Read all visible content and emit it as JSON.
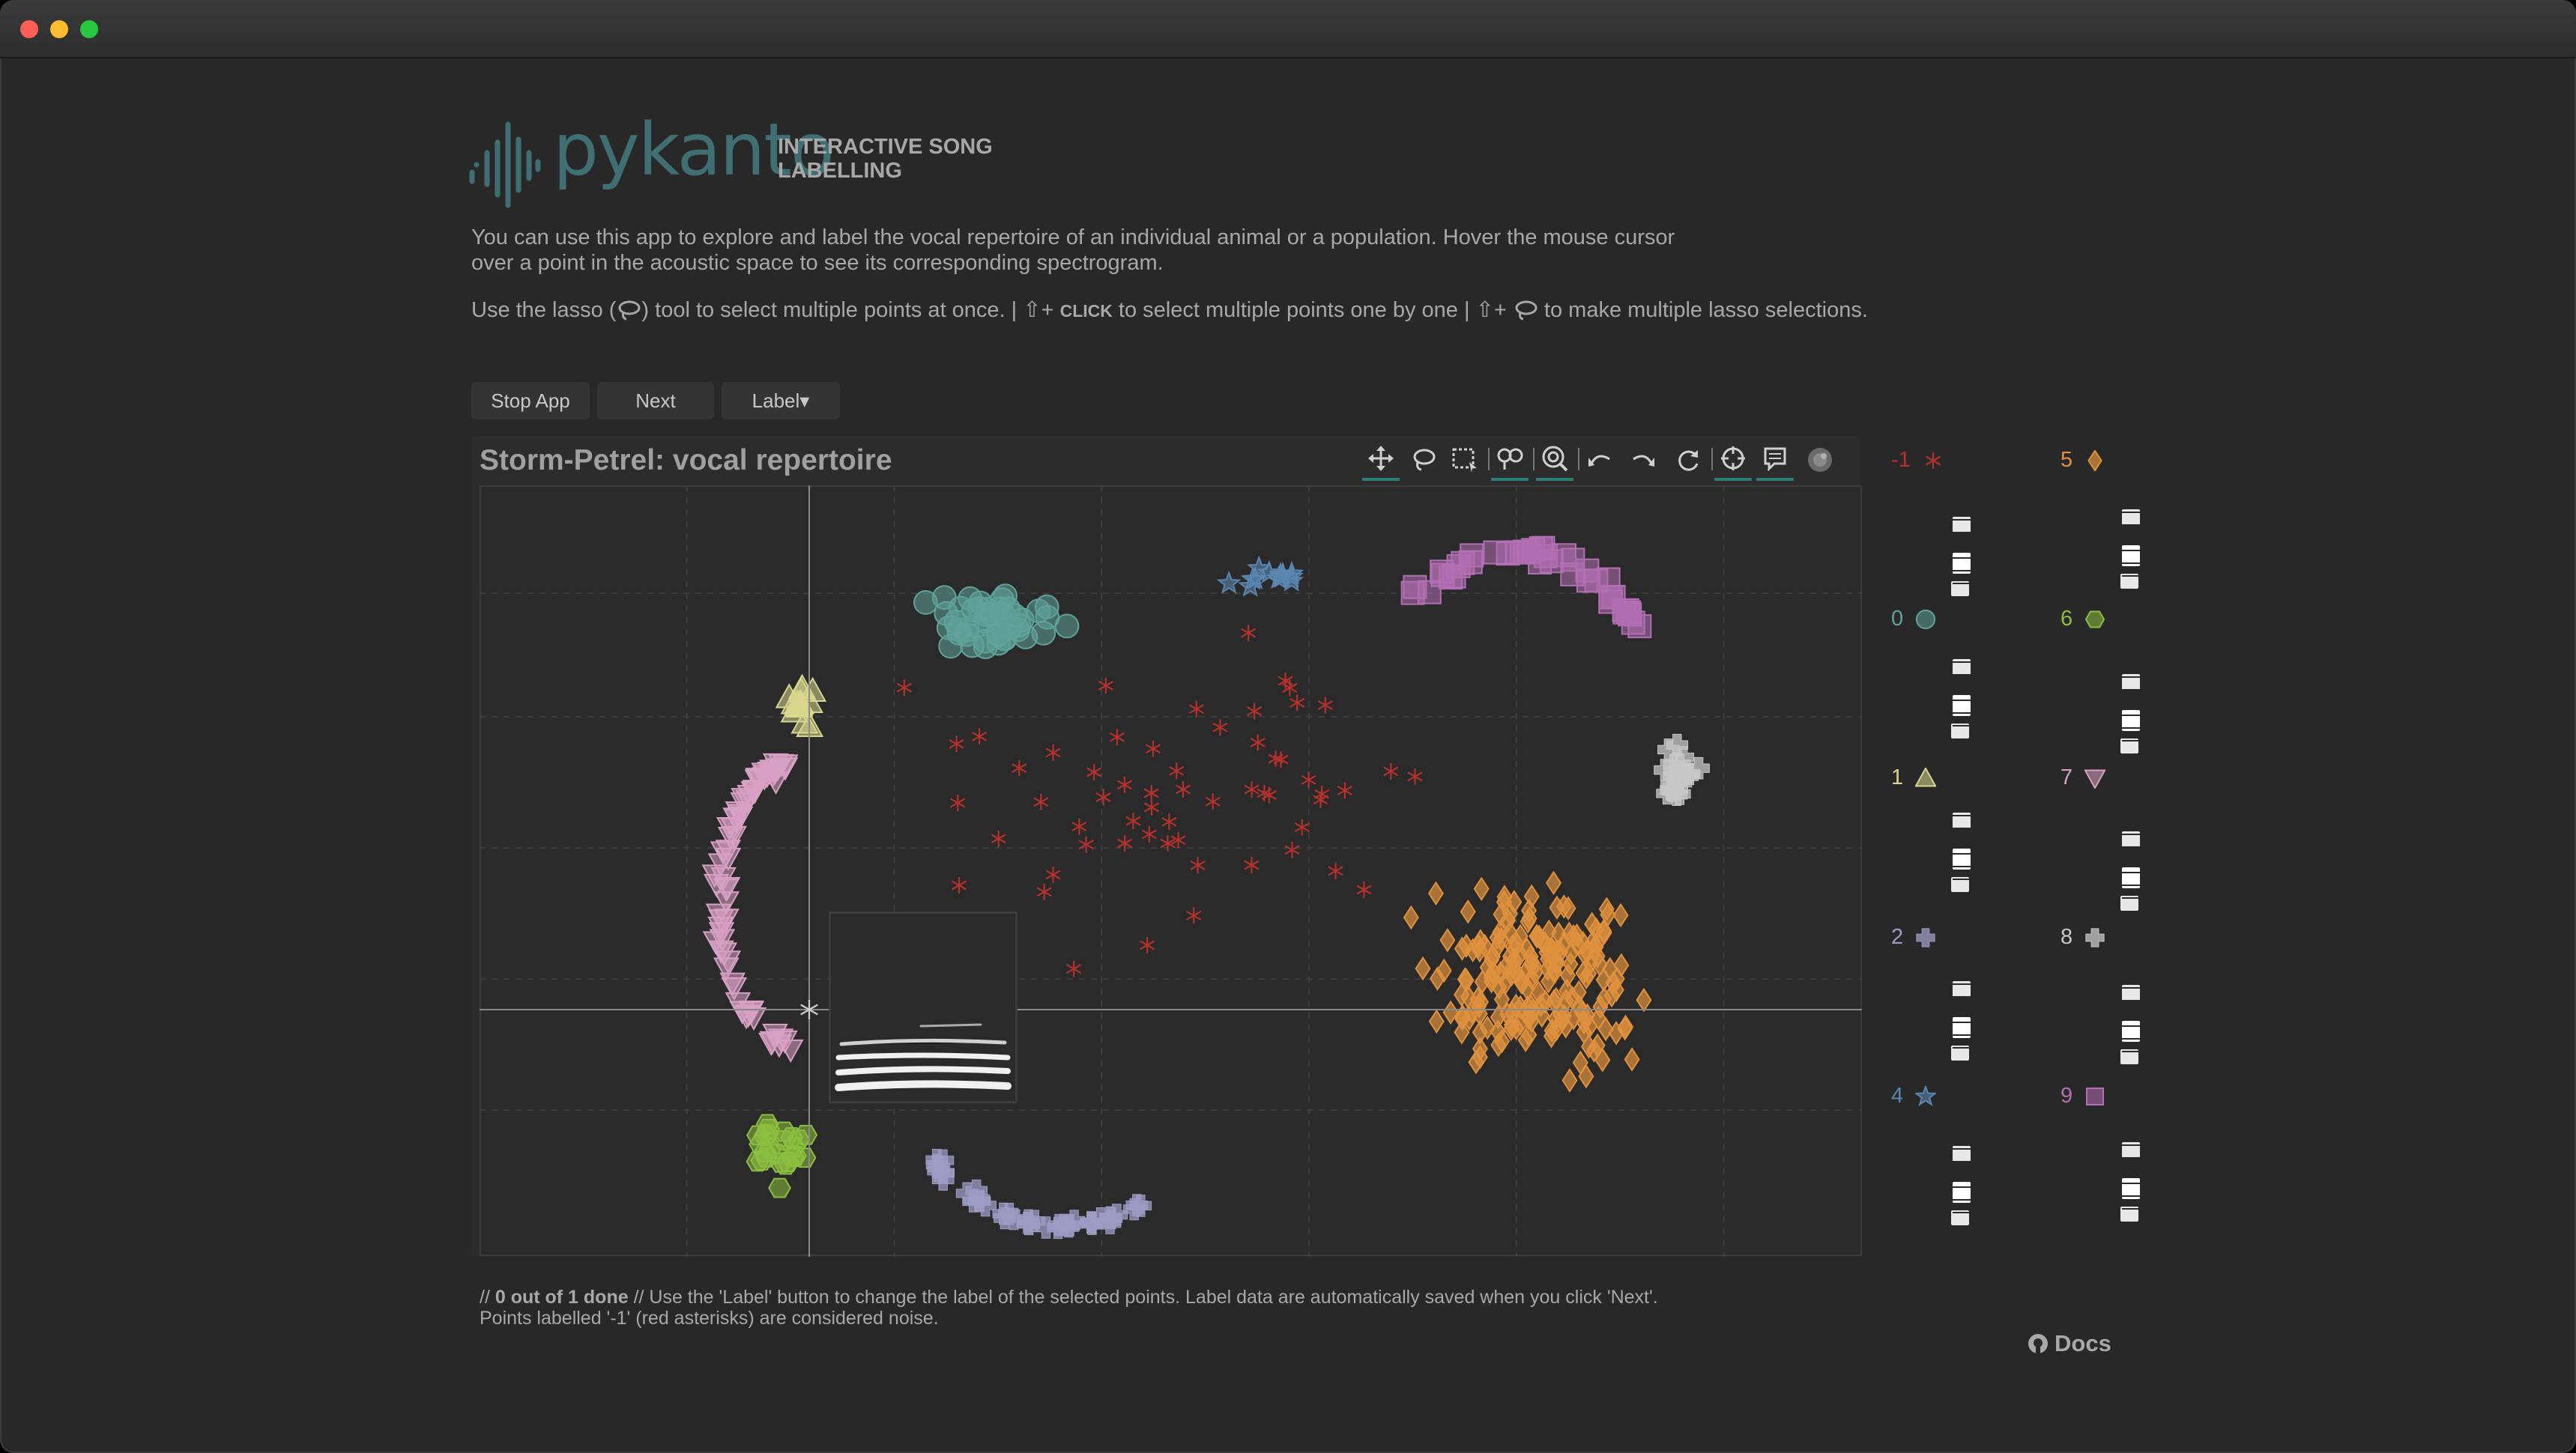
{
  "app": {
    "logo_text": "pykanto",
    "subtitle": "INTERACTIVE SONG LABELLING",
    "intro": "You can use this app to explore and label the vocal repertoire of an individual animal or a population. Hover the mouse cursor over a point in the acoustic space to see its corresponding spectrogram.",
    "help": {
      "part1": "Use the lasso (",
      "part2": ") tool to select multiple points at once. | ",
      "shift1": "⇧+ ",
      "click": "CLICK",
      "part3": " to select multiple points one by one | ",
      "shift2": "⇧+ ",
      "part4": " to make multiple lasso selections."
    }
  },
  "buttons": {
    "stop": "Stop App",
    "next": "Next",
    "label": "Label▾"
  },
  "plot": {
    "title": "Storm-Petrel: vocal repertoire",
    "toolbar_icons": [
      "pan-icon",
      "lasso-icon",
      "box-select-icon",
      "box-zoom-icon",
      "wheel-zoom-icon",
      "undo-icon",
      "redo-icon",
      "reset-icon",
      "crosshair-icon",
      "hover-icon",
      "bokeh-logo-icon"
    ]
  },
  "legend": [
    {
      "label": "-1",
      "marker": "asterisk",
      "color": "#b5312b"
    },
    {
      "label": "0",
      "marker": "circle",
      "color": "#5fa39a"
    },
    {
      "label": "1",
      "marker": "triangle",
      "color": "#d9d78e"
    },
    {
      "label": "2",
      "marker": "cross",
      "color": "#9e9cc4"
    },
    {
      "label": "4",
      "marker": "star",
      "color": "#5a86b0"
    },
    {
      "label": "5",
      "marker": "diamond",
      "color": "#e0913d"
    },
    {
      "label": "6",
      "marker": "hexagon",
      "color": "#8cbf3f"
    },
    {
      "label": "7",
      "marker": "inverted-triangle",
      "color": "#d8a1c4"
    },
    {
      "label": "8",
      "marker": "cross",
      "color": "#c8c8c8"
    },
    {
      "label": "9",
      "marker": "square",
      "color": "#b26fb3"
    }
  ],
  "footnote": {
    "pre": "// ",
    "progress": "0 out of 1 done",
    "post": " // Use the 'Label' button to change the label of the selected points. Label data are automatically saved when you click 'Next'.",
    "line2": "Points labelled '-1' (red asterisks) are considered noise."
  },
  "docs": "Docs"
}
